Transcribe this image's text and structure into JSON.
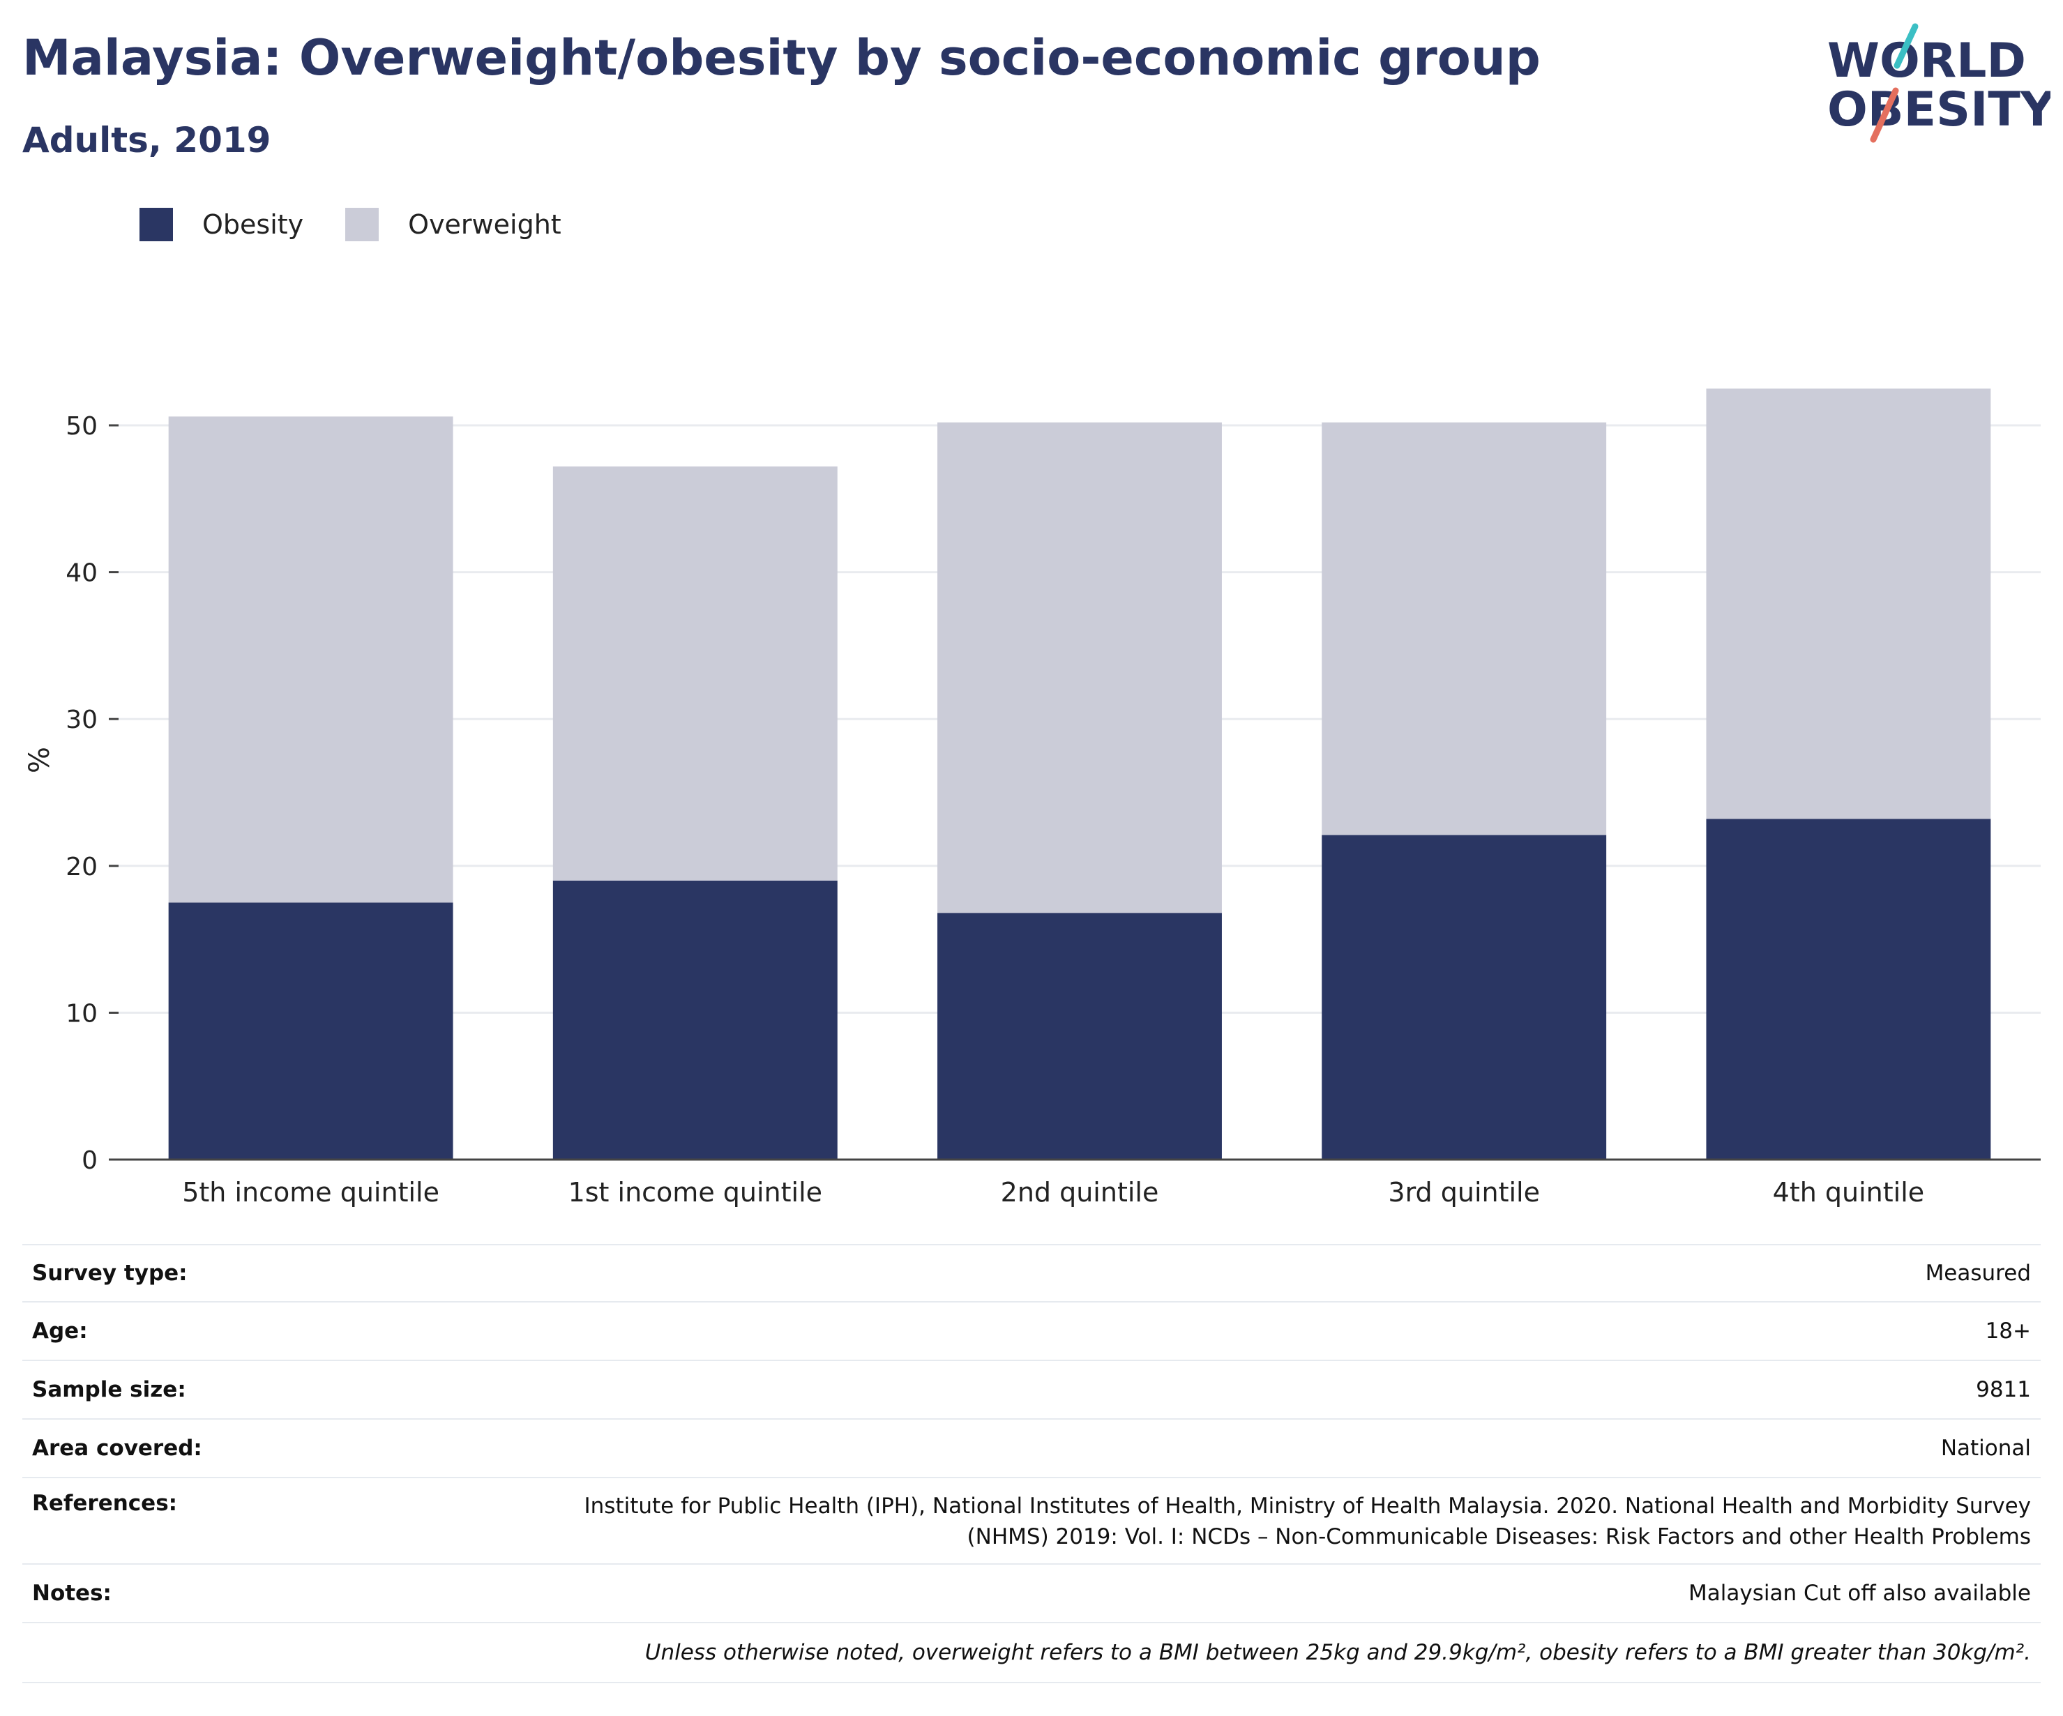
{
  "header": {
    "title": "Malaysia: Overweight/obesity by socio-economic group",
    "subtitle": "Adults, 2019"
  },
  "logo": {
    "line1": "WORLD",
    "line2": "OBESITY",
    "name": "world-obesity-logo"
  },
  "colors": {
    "obesity": "#2a3663",
    "overweight": "#cbccd8",
    "text": "#2a3563",
    "grid": "#e9ebef",
    "logo_teal": "#3bbfc4",
    "logo_coral": "#e46f5e"
  },
  "chart_data": {
    "type": "bar",
    "stacked": true,
    "categories": [
      "5th income quintile",
      "1st income quintile",
      "2nd quintile",
      "3rd quintile",
      "4th quintile"
    ],
    "series": [
      {
        "name": "Obesity",
        "values": [
          17.5,
          19.0,
          16.8,
          22.1,
          23.2
        ]
      },
      {
        "name": "Overweight",
        "values": [
          33.1,
          28.2,
          33.4,
          28.1,
          29.3
        ]
      }
    ],
    "ylabel": "%",
    "ylim": [
      0,
      55
    ],
    "yticks": [
      0,
      10,
      20,
      30,
      40,
      50
    ],
    "grid": true,
    "legend": "top-left"
  },
  "meta": {
    "rows": [
      {
        "label": "Survey type:",
        "value": "Measured"
      },
      {
        "label": "Age:",
        "value": "18+"
      },
      {
        "label": "Sample size:",
        "value": "9811"
      },
      {
        "label": "Area covered:",
        "value": "National"
      },
      {
        "label": "References:",
        "value": "Institute for Public Health (IPH), National Institutes of Health, Ministry of Health Malaysia. 2020. National Health and Morbidity Survey",
        "value2": "(NHMS) 2019: Vol. I: NCDs – Non-Communicable Diseases: Risk Factors and other Health Problems"
      },
      {
        "label": "Notes:",
        "value": "Malaysian Cut off also available"
      }
    ],
    "footnote": "Unless otherwise noted, overweight refers to a BMI between 25kg and 29.9kg/m², obesity refers to a BMI greater than 30kg/m²."
  }
}
